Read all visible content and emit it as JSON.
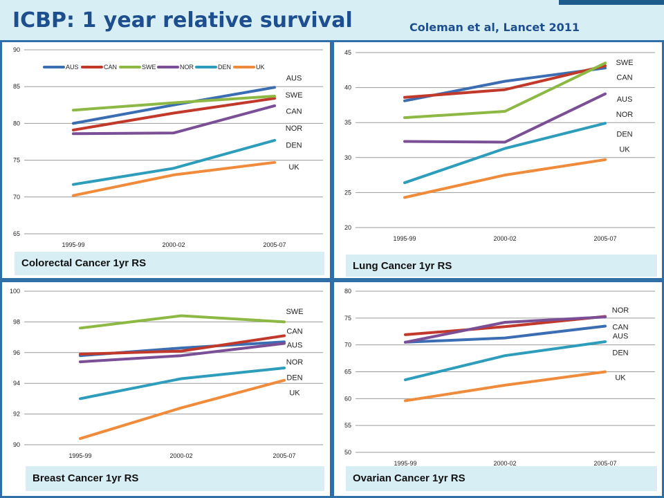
{
  "header": {
    "title": "ICBP: 1 year relative survival",
    "citation": "Coleman et al, Lancet 2011"
  },
  "colors": {
    "AUS": "#3b6db3",
    "CAN": "#c0392b",
    "SWE": "#8db843",
    "NOR": "#7a4f96",
    "DEN": "#2e9dbc",
    "UK": "#ef8b3a"
  },
  "chart_data": [
    {
      "type": "line",
      "title": "Colorectal Cancer 1yr RS",
      "categories": [
        "1995-99",
        "2000-02",
        "2005-07"
      ],
      "ylim": [
        65,
        90
      ],
      "yticks": [
        65,
        70,
        75,
        80,
        85,
        90
      ],
      "legend": [
        "AUS",
        "CAN",
        "SWE",
        "NOR",
        "DEN",
        "UK"
      ],
      "series": [
        {
          "name": "AUS",
          "values": [
            80.0,
            82.5,
            84.9
          ]
        },
        {
          "name": "CAN",
          "values": [
            79.1,
            81.4,
            83.4
          ]
        },
        {
          "name": "SWE",
          "values": [
            81.8,
            82.8,
            83.7
          ]
        },
        {
          "name": "NOR",
          "values": [
            78.6,
            78.7,
            82.4
          ]
        },
        {
          "name": "DEN",
          "values": [
            71.7,
            73.9,
            77.7
          ]
        },
        {
          "name": "UK",
          "values": [
            70.2,
            73.0,
            74.7
          ]
        }
      ],
      "annotations": [
        {
          "text": "AUS",
          "y": 86.2
        },
        {
          "text": "SWE",
          "y": 83.9
        },
        {
          "text": "CAN",
          "y": 81.7
        },
        {
          "text": "NOR",
          "y": 79.4
        },
        {
          "text": "DEN",
          "y": 77.1
        },
        {
          "text": "UK",
          "y": 74.1
        }
      ]
    },
    {
      "type": "line",
      "title": "Lung Cancer 1yr RS",
      "categories": [
        "1995-99",
        "2000-02",
        "2005-07"
      ],
      "ylim": [
        20,
        45
      ],
      "yticks": [
        20,
        25,
        30,
        35,
        40,
        45
      ],
      "series": [
        {
          "name": "AUS",
          "values": [
            38.1,
            40.9,
            42.8
          ]
        },
        {
          "name": "CAN",
          "values": [
            38.6,
            39.7,
            43.1
          ]
        },
        {
          "name": "SWE",
          "values": [
            35.7,
            36.6,
            43.5
          ]
        },
        {
          "name": "NOR",
          "values": [
            32.3,
            32.2,
            39.1
          ]
        },
        {
          "name": "DEN",
          "values": [
            26.4,
            31.3,
            34.9
          ]
        },
        {
          "name": "UK",
          "values": [
            24.3,
            27.5,
            29.7
          ]
        }
      ],
      "annotations": [
        {
          "text": "SWE",
          "y": 43.6
        },
        {
          "text": "CAN",
          "y": 41.5
        },
        {
          "text": "AUS",
          "y": 38.4
        },
        {
          "text": "NOR",
          "y": 36.2
        },
        {
          "text": "DEN",
          "y": 33.4
        },
        {
          "text": "UK",
          "y": 31.2
        }
      ]
    },
    {
      "type": "line",
      "title": "Breast Cancer 1yr RS",
      "categories": [
        "1995-99",
        "2000-02",
        "2005-07"
      ],
      "ylim": [
        90,
        100
      ],
      "yticks": [
        90,
        92,
        94,
        96,
        98,
        100
      ],
      "series": [
        {
          "name": "AUS",
          "values": [
            95.8,
            96.3,
            96.7
          ]
        },
        {
          "name": "CAN",
          "values": [
            95.9,
            96.1,
            97.1
          ]
        },
        {
          "name": "SWE",
          "values": [
            97.6,
            98.4,
            98.0
          ]
        },
        {
          "name": "NOR",
          "values": [
            95.4,
            95.8,
            96.6
          ]
        },
        {
          "name": "DEN",
          "values": [
            93.0,
            94.3,
            95.0
          ]
        },
        {
          "name": "UK",
          "values": [
            90.4,
            92.4,
            94.2
          ]
        }
      ],
      "annotations": [
        {
          "text": "SWE",
          "y": 98.7
        },
        {
          "text": "CAN",
          "y": 97.4
        },
        {
          "text": "AUS",
          "y": 96.5
        },
        {
          "text": "NOR",
          "y": 95.4
        },
        {
          "text": "DEN",
          "y": 94.4
        },
        {
          "text": "UK",
          "y": 93.4
        }
      ]
    },
    {
      "type": "line",
      "title": "Ovarian Cancer 1yr RS",
      "categories": [
        "1995-99",
        "2000-02",
        "2005-07"
      ],
      "ylim": [
        50,
        80
      ],
      "yticks": [
        50,
        55,
        60,
        65,
        70,
        75,
        80
      ],
      "series": [
        {
          "name": "AUS",
          "values": [
            70.5,
            71.3,
            73.5
          ]
        },
        {
          "name": "CAN",
          "values": [
            71.9,
            73.4,
            75.3
          ]
        },
        {
          "name": "NOR",
          "values": [
            70.5,
            74.2,
            75.2
          ]
        },
        {
          "name": "DEN",
          "values": [
            63.5,
            68.0,
            70.6
          ]
        },
        {
          "name": "UK",
          "values": [
            59.6,
            62.5,
            65.0
          ]
        }
      ],
      "annotations": [
        {
          "text": "NOR",
          "y": 76.5
        },
        {
          "text": "CAN",
          "y": 73.4
        },
        {
          "text": "AUS",
          "y": 71.7
        },
        {
          "text": "DEN",
          "y": 68.6
        },
        {
          "text": "UK",
          "y": 64.0
        }
      ]
    }
  ]
}
